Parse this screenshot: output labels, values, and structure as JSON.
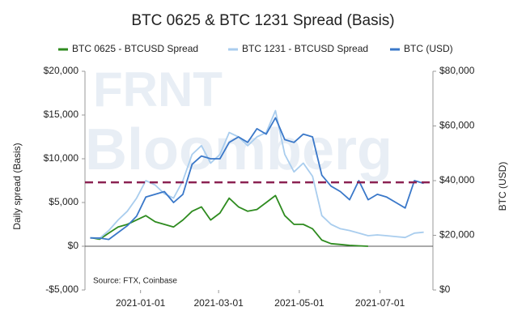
{
  "chart_data": {
    "type": "line",
    "title": "BTC 0625 & BTC 1231 Spread (Basis)",
    "ylabel": "Daily spread (Basis)",
    "y2label": "BTC (USD)",
    "source": "Source: FTX, Coinbase",
    "watermark": [
      "FRNT",
      "Bloomberg"
    ],
    "x": [
      "2020-11-24",
      "2020-12-01",
      "2020-12-08",
      "2020-12-15",
      "2020-12-22",
      "2020-12-29",
      "2021-01-05",
      "2021-01-12",
      "2021-01-19",
      "2021-01-26",
      "2021-02-02",
      "2021-02-09",
      "2021-02-16",
      "2021-02-23",
      "2021-03-02",
      "2021-03-09",
      "2021-03-16",
      "2021-03-23",
      "2021-03-30",
      "2021-04-06",
      "2021-04-13",
      "2021-04-20",
      "2021-04-27",
      "2021-05-04",
      "2021-05-11",
      "2021-05-18",
      "2021-05-25",
      "2021-06-01",
      "2021-06-08",
      "2021-06-15",
      "2021-06-22",
      "2021-06-29",
      "2021-07-06",
      "2021-07-13",
      "2021-07-20",
      "2021-07-27",
      "2021-08-03"
    ],
    "xlim": [
      "2020-11-20",
      "2021-08-10"
    ],
    "xticks": [
      "2021-01-01",
      "2021-03-01",
      "2021-05-01",
      "2021-07-01"
    ],
    "ylim": [
      -5000,
      20000
    ],
    "yticks": [
      {
        "value": -5000,
        "label": "-$5,000"
      },
      {
        "value": 0,
        "label": "$0"
      },
      {
        "value": 5000,
        "label": "$5,000"
      },
      {
        "value": 10000,
        "label": "$10,000"
      },
      {
        "value": 15000,
        "label": "$15,000"
      },
      {
        "value": 20000,
        "label": "$20,000"
      }
    ],
    "y2lim": [
      0,
      80000
    ],
    "y2ticks": [
      {
        "value": 0,
        "label": "$0"
      },
      {
        "value": 20000,
        "label": "$20,000"
      },
      {
        "value": 40000,
        "label": "$40,000"
      },
      {
        "value": 60000,
        "label": "$60,000"
      },
      {
        "value": 80000,
        "label": "$80,000"
      }
    ],
    "hline": {
      "value": 7300,
      "color": "#8b2252"
    },
    "series": [
      {
        "name": "BTC 0625 - BTCUSD Spread",
        "color": "#2e8b1f",
        "values": [
          1000,
          800,
          1500,
          2200,
          2500,
          3000,
          3500,
          2800,
          2500,
          2200,
          3000,
          4000,
          4500,
          3000,
          3800,
          5500,
          4500,
          4000,
          4200,
          5000,
          5800,
          3500,
          2500,
          2500,
          2000,
          700,
          300,
          200,
          100,
          50,
          0,
          null,
          null,
          null,
          null,
          null,
          null
        ]
      },
      {
        "name": "BTC 1231 - BTCUSD Spread",
        "color": "#a9cdee",
        "values": [
          1000,
          900,
          1800,
          3000,
          4000,
          5500,
          7500,
          7000,
          6000,
          5500,
          7500,
          10500,
          11500,
          9500,
          10500,
          13000,
          12500,
          11500,
          12500,
          13000,
          15500,
          10500,
          8500,
          9500,
          8000,
          3500,
          2500,
          2000,
          1800,
          1500,
          1200,
          1300,
          1200,
          1100,
          1000,
          1500,
          1600
        ]
      },
      {
        "name": "BTC (USD)",
        "color": "#3a78c9",
        "axis": "y2",
        "values": [
          19000,
          19000,
          18500,
          21000,
          23500,
          27000,
          34000,
          35000,
          36000,
          32000,
          35000,
          46000,
          49000,
          48000,
          48000,
          54000,
          56000,
          54000,
          59000,
          57000,
          63000,
          55000,
          54000,
          57000,
          56000,
          42000,
          38000,
          36000,
          33000,
          40000,
          33000,
          35000,
          34000,
          32000,
          30000,
          40000,
          39000
        ]
      }
    ]
  }
}
